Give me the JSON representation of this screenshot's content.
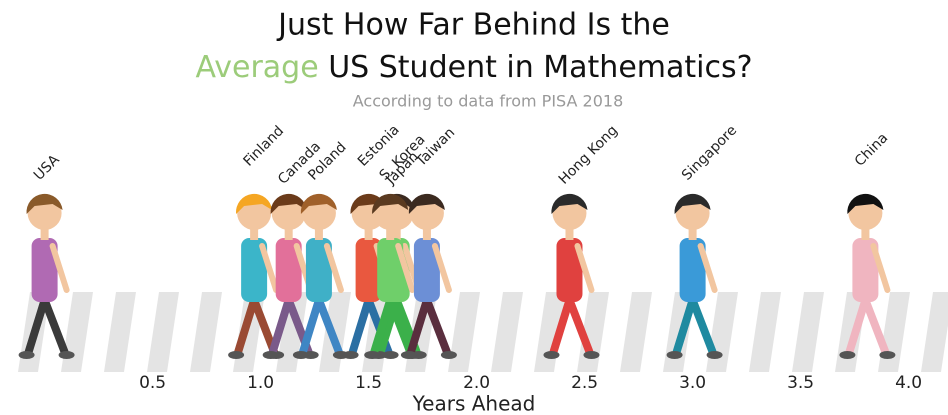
{
  "chart_data": {
    "type": "walkers",
    "title_line1": "Just How Far Behind Is the",
    "title_highlight": "Average",
    "title_line2": "US Student in Mathematics?",
    "subtitle": "According to data from PISA 2018",
    "x_label": "Years Ahead",
    "highlight_color": "#9ccc7a",
    "categories": [
      "USA",
      "Finland",
      "Canada",
      "Poland",
      "Estonia",
      "Japan",
      "S. Korea",
      "Taiwan",
      "Hong Kong",
      "Singapore",
      "China"
    ],
    "values": [
      0,
      0.97,
      1.13,
      1.27,
      1.5,
      1.63,
      1.6,
      1.77,
      2.43,
      3.0,
      3.8
    ],
    "xlim": [
      -0.1,
      4.15
    ],
    "xticks": [
      0.5,
      {
        "value": 1,
        "label": "1.0"
      },
      1.5,
      {
        "value": 2,
        "label": "2.0"
      },
      2.5,
      {
        "value": 3,
        "label": "3.0"
      },
      3.5,
      {
        "value": 4,
        "label": "4.0"
      }
    ]
  }
}
